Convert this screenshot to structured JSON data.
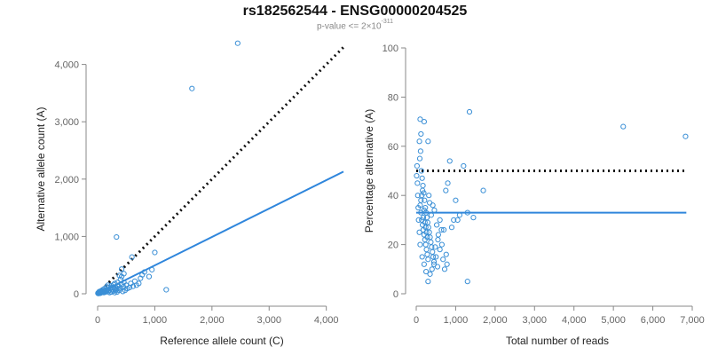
{
  "header": {
    "title": "rs182562544 - ENSG00000204525",
    "pvalue_prefix": "p-value <= 2×10",
    "pvalue_exponent": "-311"
  },
  "colors": {
    "points": "#3a8fd6",
    "fit": "#2f86dc",
    "reference": "#111111"
  },
  "chart_data": [
    {
      "type": "scatter",
      "xlabel": "Reference allele count (C)",
      "ylabel": "Alternative allele count (A)",
      "xlim": [
        0,
        4300
      ],
      "ylim": [
        0,
        4350
      ],
      "xticks": [
        0,
        1000,
        2000,
        3000,
        4000
      ],
      "xtick_labels": [
        "0",
        "1,000",
        "2,000",
        "3,000",
        "4,000"
      ],
      "yticks": [
        0,
        1000,
        2000,
        3000,
        4000
      ],
      "ytick_labels": [
        "0",
        "1,000",
        "2,000",
        "3,000",
        "4,000"
      ],
      "fit_line": {
        "x": [
          0,
          4300
        ],
        "y": [
          0,
          2130
        ]
      },
      "reference_line": {
        "x": [
          0,
          4300
        ],
        "y": [
          0,
          4300
        ]
      },
      "points": [
        [
          2450,
          4370
        ],
        [
          1650,
          3580
        ],
        [
          330,
          990
        ],
        [
          1000,
          720
        ],
        [
          600,
          640
        ],
        [
          420,
          430
        ],
        [
          380,
          320
        ],
        [
          1200,
          70
        ],
        [
          780,
          330
        ],
        [
          750,
          270
        ],
        [
          650,
          220
        ],
        [
          580,
          180
        ],
        [
          500,
          150
        ],
        [
          450,
          120
        ],
        [
          400,
          100
        ],
        [
          350,
          90
        ],
        [
          300,
          80
        ],
        [
          250,
          70
        ],
        [
          200,
          60
        ],
        [
          180,
          150
        ],
        [
          150,
          50
        ],
        [
          120,
          40
        ],
        [
          100,
          30
        ],
        [
          80,
          25
        ],
        [
          60,
          20
        ],
        [
          50,
          10
        ],
        [
          40,
          15
        ],
        [
          30,
          10
        ],
        [
          20,
          5
        ],
        [
          10,
          5
        ],
        [
          320,
          60
        ],
        [
          280,
          50
        ],
        [
          260,
          110
        ],
        [
          220,
          90
        ],
        [
          190,
          40
        ],
        [
          170,
          70
        ],
        [
          140,
          30
        ],
        [
          130,
          60
        ],
        [
          110,
          20
        ],
        [
          90,
          45
        ],
        [
          70,
          35
        ],
        [
          55,
          30
        ],
        [
          45,
          20
        ],
        [
          35,
          25
        ],
        [
          25,
          15
        ],
        [
          360,
          140
        ],
        [
          310,
          120
        ],
        [
          270,
          100
        ],
        [
          240,
          30
        ],
        [
          210,
          20
        ],
        [
          460,
          200
        ],
        [
          420,
          160
        ],
        [
          380,
          60
        ],
        [
          340,
          30
        ],
        [
          300,
          20
        ],
        [
          520,
          90
        ],
        [
          480,
          60
        ],
        [
          440,
          40
        ],
        [
          560,
          110
        ],
        [
          620,
          130
        ],
        [
          680,
          150
        ],
        [
          720,
          180
        ],
        [
          820,
          380
        ],
        [
          900,
          300
        ],
        [
          950,
          420
        ],
        [
          160,
          120
        ],
        [
          200,
          110
        ],
        [
          240,
          140
        ],
        [
          280,
          160
        ],
        [
          120,
          90
        ],
        [
          90,
          70
        ],
        [
          60,
          50
        ],
        [
          30,
          40
        ],
        [
          15,
          20
        ],
        [
          5,
          10
        ],
        [
          400,
          250
        ],
        [
          350,
          200
        ],
        [
          300,
          180
        ],
        [
          420,
          300
        ],
        [
          460,
          350
        ]
      ]
    },
    {
      "type": "scatter",
      "xlabel": "Total number of reads",
      "ylabel": "Percentage alternative (A)",
      "xlim": [
        0,
        7000
      ],
      "ylim": [
        0,
        100
      ],
      "xticks": [
        0,
        1000,
        2000,
        3000,
        4000,
        5000,
        6000,
        7000
      ],
      "xtick_labels": [
        "0",
        "1,000",
        "2,000",
        "3,000",
        "4,000",
        "5,000",
        "6,000",
        "7,000"
      ],
      "yticks": [
        0,
        20,
        40,
        60,
        80,
        100
      ],
      "ytick_labels": [
        "0",
        "20",
        "40",
        "60",
        "80",
        "100"
      ],
      "fit_line": {
        "x": [
          0,
          6850
        ],
        "y": [
          33,
          33
        ]
      },
      "reference_line": {
        "x": [
          0,
          6850
        ],
        "y": [
          50,
          50
        ]
      },
      "points": [
        [
          1350,
          74
        ],
        [
          5250,
          68
        ],
        [
          6830,
          64
        ],
        [
          100,
          71
        ],
        [
          200,
          70
        ],
        [
          120,
          65
        ],
        [
          80,
          62
        ],
        [
          300,
          62
        ],
        [
          1200,
          52
        ],
        [
          1700,
          42
        ],
        [
          850,
          54
        ],
        [
          800,
          45
        ],
        [
          750,
          42
        ],
        [
          1000,
          38
        ],
        [
          1100,
          32
        ],
        [
          1300,
          33
        ],
        [
          1450,
          31
        ],
        [
          1050,
          30
        ],
        [
          950,
          30
        ],
        [
          900,
          27
        ],
        [
          700,
          26
        ],
        [
          650,
          20
        ],
        [
          600,
          18
        ],
        [
          550,
          22
        ],
        [
          500,
          15
        ],
        [
          450,
          12
        ],
        [
          400,
          10
        ],
        [
          350,
          8
        ],
        [
          300,
          5
        ],
        [
          250,
          9
        ],
        [
          1300,
          5
        ],
        [
          200,
          12
        ],
        [
          150,
          15
        ],
        [
          100,
          20
        ],
        [
          80,
          25
        ],
        [
          60,
          30
        ],
        [
          50,
          35
        ],
        [
          40,
          40
        ],
        [
          30,
          45
        ],
        [
          20,
          52
        ],
        [
          10,
          48
        ],
        [
          90,
          55
        ],
        [
          110,
          58
        ],
        [
          130,
          50
        ],
        [
          150,
          47
        ],
        [
          170,
          44
        ],
        [
          190,
          41
        ],
        [
          210,
          38
        ],
        [
          230,
          35
        ],
        [
          250,
          33
        ],
        [
          270,
          31
        ],
        [
          290,
          29
        ],
        [
          310,
          27
        ],
        [
          330,
          25
        ],
        [
          350,
          23
        ],
        [
          370,
          21
        ],
        [
          390,
          19
        ],
        [
          410,
          17
        ],
        [
          430,
          15
        ],
        [
          450,
          13
        ],
        [
          120,
          33
        ],
        [
          140,
          30
        ],
        [
          160,
          28
        ],
        [
          180,
          26
        ],
        [
          200,
          24
        ],
        [
          220,
          22
        ],
        [
          240,
          20
        ],
        [
          260,
          18
        ],
        [
          280,
          16
        ],
        [
          300,
          14
        ],
        [
          100,
          36
        ],
        [
          120,
          38
        ],
        [
          140,
          40
        ],
        [
          160,
          42
        ],
        [
          180,
          31
        ],
        [
          200,
          34
        ],
        [
          220,
          29
        ],
        [
          240,
          27
        ],
        [
          260,
          25
        ],
        [
          280,
          23
        ],
        [
          520,
          28
        ],
        [
          560,
          24
        ],
        [
          600,
          30
        ],
        [
          640,
          26
        ],
        [
          680,
          14
        ],
        [
          720,
          10
        ],
        [
          760,
          16
        ],
        [
          780,
          12
        ],
        [
          540,
          11
        ],
        [
          480,
          19
        ],
        [
          380,
          32
        ],
        [
          420,
          36
        ],
        [
          460,
          34
        ],
        [
          340,
          37
        ],
        [
          320,
          40
        ]
      ]
    }
  ]
}
